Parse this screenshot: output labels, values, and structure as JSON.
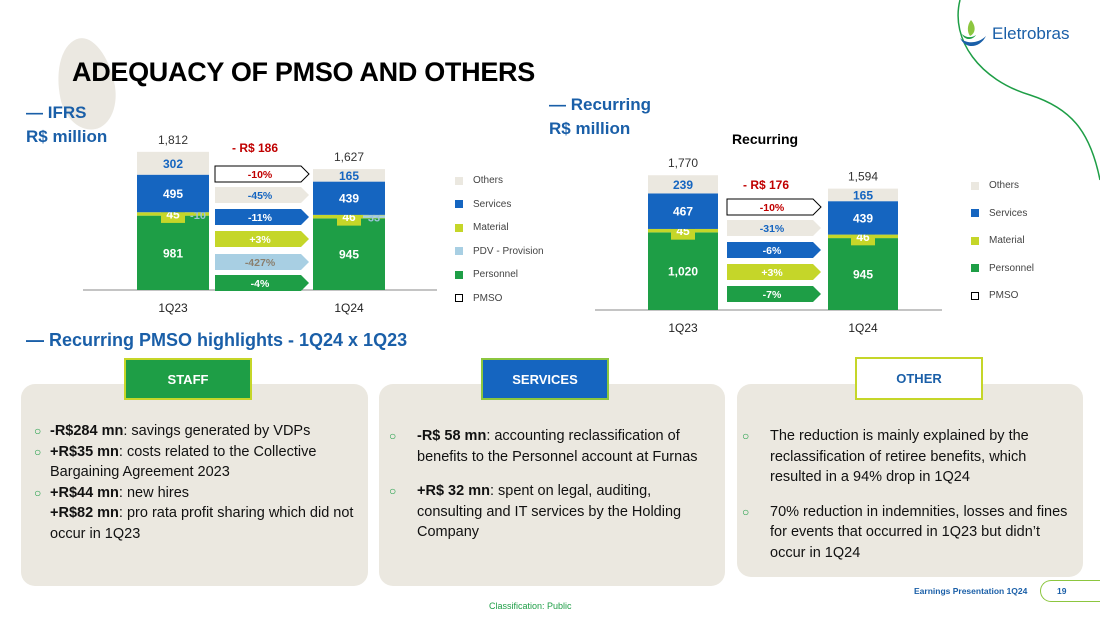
{
  "page": {
    "title": "ADEQUACY OF PMSO AND OTHERS",
    "logo_text": "Eletrobras",
    "footer_classification": "Classification: Public",
    "footer_presentation": "Earnings Presentation 1Q24",
    "page_number": "19"
  },
  "colors": {
    "others": "#ebe8e0",
    "services": "#1565c0",
    "material": "#c5d629",
    "pdv": "#a8cfe3",
    "personnel": "#1e9e46",
    "brand_blue": "#1a5fa8",
    "delta_red": "#c00000"
  },
  "left_section": {
    "line1": "— IFRS",
    "line2": "R$ million"
  },
  "right_section": {
    "line1": "— Recurring",
    "line2": "R$ million"
  },
  "legend_left": [
    "Others",
    "Services",
    "Material",
    "PDV - Provision",
    "Personnel",
    "PMSO"
  ],
  "legend_right": [
    "Others",
    "Services",
    "Material",
    "Personnel",
    "PMSO"
  ],
  "chart_data": [
    {
      "type": "bar",
      "stacked": true,
      "title": "",
      "categories": [
        "1Q23",
        "1Q24"
      ],
      "totals": [
        1812,
        1627
      ],
      "series": [
        {
          "name": "Personnel",
          "values": [
            981,
            945
          ]
        },
        {
          "name": "Material",
          "values": [
            45,
            46
          ]
        },
        {
          "name": "PDV - Provision",
          "values": [
            -10,
            33
          ]
        },
        {
          "name": "Services",
          "values": [
            495,
            439
          ]
        },
        {
          "name": "Others",
          "values": [
            302,
            165
          ]
        }
      ],
      "labels": {
        "totals": [
          "1,812",
          "1,627"
        ],
        "Personnel": [
          "981",
          "945"
        ],
        "Material": [
          "45",
          "46"
        ],
        "PDV - Provision": [
          "-10",
          "33"
        ],
        "Services": [
          "495",
          "439"
        ],
        "Others": [
          "302",
          "165"
        ]
      },
      "delta_total": "- R$ 186",
      "variations": [
        {
          "series": "PMSO",
          "label": "-10%"
        },
        {
          "series": "Others",
          "label": "-45%"
        },
        {
          "series": "Services",
          "label": "-11%"
        },
        {
          "series": "Material",
          "label": "+3%"
        },
        {
          "series": "PDV - Provision",
          "label": "-427%"
        },
        {
          "series": "Personnel",
          "label": "-4%"
        }
      ]
    },
    {
      "type": "bar",
      "stacked": true,
      "title": "Recurring",
      "categories": [
        "1Q23",
        "1Q24"
      ],
      "totals": [
        1770,
        1594
      ],
      "series": [
        {
          "name": "Personnel",
          "values": [
            1020,
            945
          ]
        },
        {
          "name": "Material",
          "values": [
            45,
            46
          ]
        },
        {
          "name": "Services",
          "values": [
            467,
            439
          ]
        },
        {
          "name": "Others",
          "values": [
            239,
            165
          ]
        }
      ],
      "labels": {
        "totals": [
          "1,770",
          "1,594"
        ],
        "Personnel": [
          "1,020",
          "945"
        ],
        "Material": [
          "45",
          "46"
        ],
        "Services": [
          "467",
          "439"
        ],
        "Others": [
          "239",
          "165"
        ]
      },
      "delta_total": "- R$ 176",
      "variations": [
        {
          "series": "PMSO",
          "label": "-10%"
        },
        {
          "series": "Others",
          "label": "-31%"
        },
        {
          "series": "Services",
          "label": "-6%"
        },
        {
          "series": "Material",
          "label": "+3%"
        },
        {
          "series": "Personnel",
          "label": "-7%"
        }
      ]
    }
  ],
  "highlights": {
    "title": "— Recurring PMSO highlights - 1Q24 x 1Q23",
    "staff": {
      "tag": "STAFF",
      "items": [
        {
          "bullet": true,
          "bold": "-R$284 mn",
          "text": ": savings generated by VDPs"
        },
        {
          "bullet": true,
          "bold": "+R$35 mn",
          "text": ": costs related to the Collective Bargaining Agreement 2023"
        },
        {
          "bullet": true,
          "bold": "+R$44 mn",
          "text": ": new hires"
        },
        {
          "bullet": false,
          "bold": "+R$82 mn",
          "text": ": pro rata profit sharing which did not occur in 1Q23"
        }
      ]
    },
    "services": {
      "tag": "SERVICES",
      "items": [
        {
          "bold": "-R$ 58 mn",
          "text": ": accounting reclassification of benefits to the Personnel account at Furnas"
        },
        {
          "bold": "+R$ 32 mn",
          "text": ": spent on legal, auditing, consulting and IT services by the Holding Company"
        }
      ]
    },
    "other": {
      "tag": "OTHER",
      "items": [
        {
          "text": "The reduction is mainly explained by the reclassification of retiree benefits, which resulted in a 94% drop in 1Q24"
        },
        {
          "text": "70% reduction in indemnities, losses and fines for events that occurred in 1Q23 but didn’t occur in 1Q24"
        }
      ]
    }
  }
}
